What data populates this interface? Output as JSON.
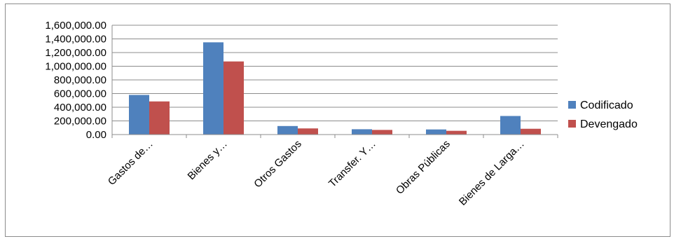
{
  "chart_data": {
    "type": "bar",
    "categories": [
      "Gastos de…",
      "Bienes y…",
      "Otros Gastos",
      "Transfer. Y…",
      "Obras Públicas",
      "Bienes de Larga…"
    ],
    "series": [
      {
        "name": "Codificado",
        "values": [
          580000,
          1350000,
          125000,
          78000,
          75000,
          272000
        ],
        "color": "#4f81bd"
      },
      {
        "name": "Devengado",
        "values": [
          485000,
          1070000,
          90000,
          68000,
          55000,
          85000
        ],
        "color": "#c0504d"
      }
    ],
    "ylim": [
      0,
      1600000
    ],
    "yticks": [
      "0.00",
      "200,000.00",
      "400,000.00",
      "600,000.00",
      "800,000.00",
      "1,000,000.00",
      "1,200,000.00",
      "1,400,000.00",
      "1,600,000.00"
    ],
    "grid": true,
    "legend_position": "right",
    "title": "",
    "xlabel": "",
    "ylabel": ""
  }
}
